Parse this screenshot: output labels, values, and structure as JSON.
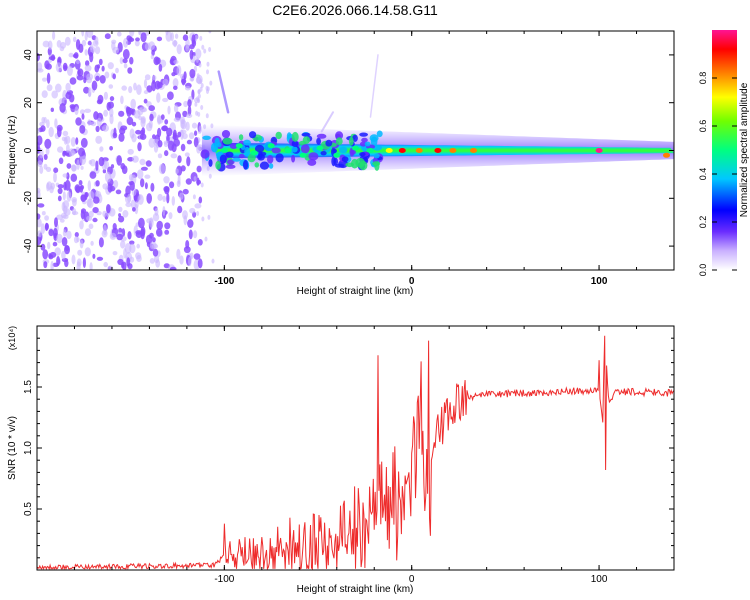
{
  "title": "C2E6.2026.066.14.58.G11",
  "colors": {
    "background": "#ffffff",
    "axis": "#000000",
    "snr_line": "#ee2c2c",
    "scatter_noise": "#8a4cff",
    "scatter_noise_light": "#c9b6ff"
  },
  "chart_data": [
    {
      "type": "heatmap",
      "title": "C2E6.2026.066.14.58.G11",
      "xlabel": "Height of straight line (km)",
      "ylabel": "Frequency (Hz)",
      "xlim": [
        -200,
        140
      ],
      "ylim": [
        -50,
        50
      ],
      "xticks": [
        -100,
        0,
        100
      ],
      "xtick_labels": [
        "-100",
        "0",
        "100"
      ],
      "yticks": [
        -40,
        -20,
        0,
        20,
        40
      ],
      "ytick_labels": [
        "-40",
        "-20",
        "0",
        "20",
        "40"
      ],
      "noise_region_x": [
        -200,
        -112
      ],
      "signal_band": {
        "x_start": -112,
        "x_end": 140,
        "center_frequency": 0,
        "half_width_start": 6,
        "half_width_end": 2
      },
      "bright_points": [
        {
          "x": -100,
          "y": 0,
          "value": 0.5
        },
        {
          "x": -92,
          "y": 2,
          "value": 0.55
        },
        {
          "x": -84,
          "y": -1,
          "value": 0.5
        },
        {
          "x": -75,
          "y": 2,
          "value": 0.6
        },
        {
          "x": -66,
          "y": 0,
          "value": 0.55
        },
        {
          "x": -58,
          "y": -2,
          "value": 0.5
        },
        {
          "x": -49,
          "y": 1,
          "value": 0.6
        },
        {
          "x": -40,
          "y": -2,
          "value": 0.55
        },
        {
          "x": -30,
          "y": 1,
          "value": 0.6
        },
        {
          "x": -22,
          "y": 0,
          "value": 0.55
        },
        {
          "x": -12,
          "y": 0,
          "value": 0.75
        },
        {
          "x": -5,
          "y": 0,
          "value": 0.95
        },
        {
          "x": 4,
          "y": 0,
          "value": 0.9
        },
        {
          "x": 14,
          "y": 0,
          "value": 0.95
        },
        {
          "x": 22,
          "y": 0,
          "value": 0.9
        },
        {
          "x": 33,
          "y": 0,
          "value": 0.85
        },
        {
          "x": 100,
          "y": 0,
          "value": 1.0
        },
        {
          "x": 136,
          "y": -2,
          "value": 0.9
        }
      ],
      "colorbar": {
        "label": "Normalized spectral amplitude",
        "range": [
          0,
          1
        ],
        "ticks": [
          0.0,
          0.2,
          0.4,
          0.6,
          0.8
        ],
        "tick_labels": [
          "0.0",
          "0.2",
          "0.4",
          "0.6",
          "0.8"
        ]
      }
    },
    {
      "type": "line",
      "xlabel": "Height of straight line (km)",
      "ylabel": "SNR (10 * v/v)",
      "yscale_label": "(x10⁴)",
      "xlim": [
        -200,
        140
      ],
      "ylim": [
        0,
        2.0
      ],
      "xticks": [
        -100,
        0,
        100
      ],
      "xtick_labels": [
        "-100",
        "0",
        "100"
      ],
      "yticks": [
        0.5,
        1.0,
        1.5
      ],
      "ytick_labels": [
        "0.5",
        "1.0",
        "1.5"
      ],
      "series": [
        {
          "name": "SNR",
          "x": [
            -200,
            -150,
            -105,
            -100,
            -80,
            -60,
            -40,
            -25,
            -20,
            -15,
            -10,
            -5,
            0,
            5,
            10,
            15,
            20,
            25,
            30,
            40,
            60,
            80,
            95,
            100,
            102,
            103,
            105,
            110,
            120,
            140
          ],
          "y": [
            0.02,
            0.03,
            0.04,
            0.12,
            0.14,
            0.18,
            0.24,
            0.35,
            0.55,
            0.7,
            0.62,
            0.5,
            0.95,
            1.05,
            0.95,
            1.15,
            1.25,
            1.38,
            1.42,
            1.44,
            1.45,
            1.46,
            1.47,
            1.47,
            1.22,
            1.9,
            1.4,
            1.46,
            1.46,
            1.45
          ],
          "spikes": [
            {
              "x": -100,
              "y": 0.38
            },
            {
              "x": -18,
              "y": 1.76
            },
            {
              "x": 5,
              "y": 1.71
            },
            {
              "x": 9,
              "y": 1.88
            },
            {
              "x": 10,
              "y": 0.28
            },
            {
              "x": 100,
              "y": 1.72
            },
            {
              "x": 103,
              "y": 1.92
            },
            {
              "x": 103.5,
              "y": 0.82
            }
          ]
        }
      ]
    }
  ]
}
